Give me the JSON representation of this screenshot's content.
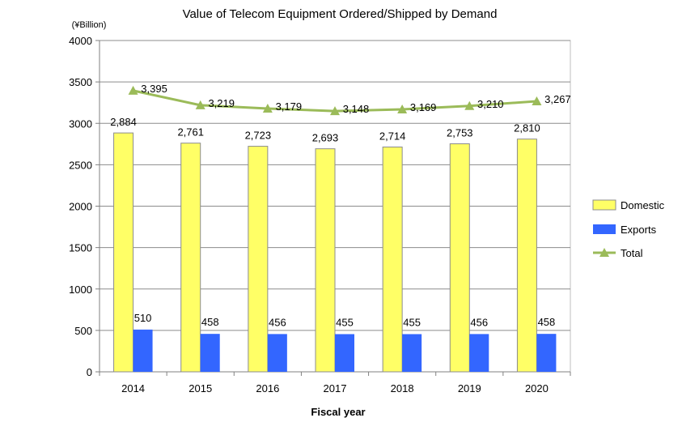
{
  "chart_data": {
    "type": "bar",
    "title": "Value of  Telecom Equipment Ordered/Shipped by Demand",
    "unit_label": "(¥Billion)",
    "xlabel": "Fiscal year",
    "ylabel": "",
    "ylim": [
      0,
      4000
    ],
    "yticks": [
      0,
      500,
      1000,
      1500,
      2000,
      2500,
      3000,
      3500,
      4000
    ],
    "categories": [
      "2014",
      "2015",
      "2016",
      "2017",
      "2018",
      "2019",
      "2020"
    ],
    "grid": true,
    "legend_position": "right",
    "series": [
      {
        "name": "Domestic",
        "type": "bar",
        "color": "#FFFF66",
        "values": [
          2884,
          2761,
          2723,
          2693,
          2714,
          2753,
          2810
        ],
        "labels": [
          "2,884",
          "2,761",
          "2,723",
          "2,693",
          "2,714",
          "2,753",
          "2,810"
        ]
      },
      {
        "name": "Exports",
        "type": "bar",
        "color": "#3366FF",
        "values": [
          510,
          458,
          456,
          455,
          455,
          456,
          458
        ],
        "labels": [
          "510",
          "458",
          "456",
          "455",
          "455",
          "456",
          "458"
        ]
      },
      {
        "name": "Total",
        "type": "line",
        "color": "#9BBB59",
        "marker": "triangle",
        "values": [
          3395,
          3219,
          3179,
          3148,
          3169,
          3210,
          3267
        ],
        "labels": [
          "3,395",
          "3,219",
          "3,179",
          "3,148",
          "3,169",
          "3,210",
          "3,267"
        ]
      }
    ]
  }
}
